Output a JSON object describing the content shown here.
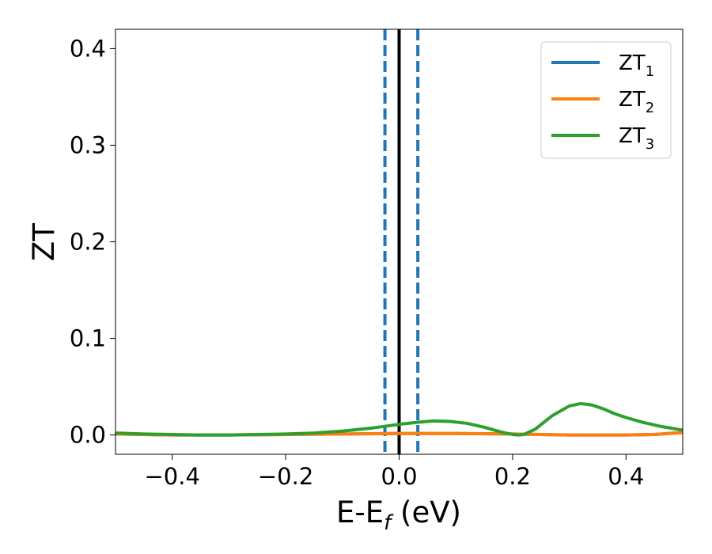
{
  "chart_data": {
    "type": "line",
    "xlabel": "E-E",
    "xlabel_sub": "f",
    "xlabel_unit": " (eV)",
    "ylabel": "ZT",
    "xlim": [
      -0.5,
      0.5
    ],
    "ylim": [
      -0.02,
      0.42
    ],
    "xticks": [
      -0.4,
      -0.2,
      0.0,
      0.2,
      0.4
    ],
    "xtick_labels": [
      "−0.4",
      "−0.2",
      "0.0",
      "0.2",
      "0.4"
    ],
    "yticks": [
      0.0,
      0.1,
      0.2,
      0.3,
      0.4
    ],
    "ytick_labels": [
      "0.0",
      "0.1",
      "0.2",
      "0.3",
      "0.4"
    ],
    "grid": false,
    "legend_position": "top-right",
    "vertical_lines": [
      {
        "x": 0.0,
        "style": "solid",
        "color": "#000000"
      },
      {
        "x": -0.025,
        "style": "dashed",
        "color": "#1f77b4"
      },
      {
        "x": 0.033,
        "style": "dashed",
        "color": "#1f77b4"
      }
    ],
    "series": [
      {
        "name": "ZT",
        "sub": "1",
        "color": "#1f77b4",
        "x": [
          -0.5,
          -0.4,
          -0.3,
          -0.2,
          -0.1,
          0.0,
          0.1,
          0.2,
          0.3,
          0.4,
          0.45,
          0.5
        ],
        "y": [
          0.001,
          0.0,
          0.0,
          0.0005,
          0.001,
          0.0015,
          0.0015,
          0.001,
          0.0,
          0.0,
          0.0005,
          0.0025
        ]
      },
      {
        "name": "ZT",
        "sub": "2",
        "color": "#ff7f0e",
        "x": [
          -0.5,
          -0.4,
          -0.3,
          -0.2,
          -0.1,
          0.0,
          0.1,
          0.2,
          0.3,
          0.4,
          0.45,
          0.5
        ],
        "y": [
          0.001,
          0.0,
          0.0,
          0.0005,
          0.001,
          0.0015,
          0.0015,
          0.001,
          0.0,
          0.0,
          0.0005,
          0.0025
        ]
      },
      {
        "name": "ZT",
        "sub": "3",
        "color": "#2ca02c",
        "x": [
          -0.5,
          -0.45,
          -0.4,
          -0.35,
          -0.3,
          -0.25,
          -0.2,
          -0.15,
          -0.1,
          -0.05,
          0.0,
          0.03,
          0.06,
          0.09,
          0.12,
          0.15,
          0.18,
          0.2,
          0.21,
          0.22,
          0.24,
          0.27,
          0.3,
          0.32,
          0.34,
          0.36,
          0.38,
          0.4,
          0.43,
          0.46,
          0.5
        ],
        "y": [
          0.002,
          0.001,
          0.0005,
          0.0,
          0.0,
          0.0005,
          0.001,
          0.002,
          0.004,
          0.007,
          0.011,
          0.013,
          0.0145,
          0.014,
          0.012,
          0.008,
          0.003,
          0.0005,
          0.0,
          0.0005,
          0.006,
          0.02,
          0.03,
          0.0325,
          0.031,
          0.027,
          0.022,
          0.018,
          0.013,
          0.009,
          0.005
        ]
      }
    ]
  }
}
